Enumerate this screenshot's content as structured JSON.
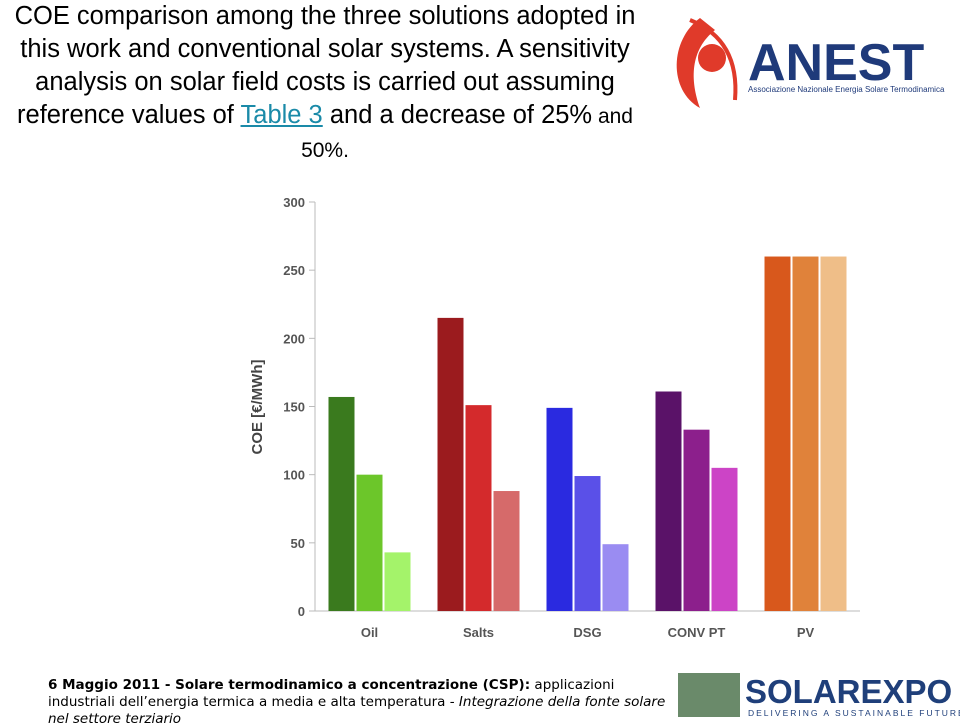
{
  "slide": {
    "title": [
      "COE comparison among the three solutions adopted in this work and conventional solar systems. A sensitivity analysis on solar field costs is carried out assuming reference values of ",
      "Table 3",
      " and a decrease of 25%",
      " and 50%."
    ],
    "footer": [
      "6 Maggio 2011 - Solare termodinamico a concentrazione (CSP):",
      " applicazioni industriali dell’energia termica a media e alta temperatura - ",
      "Integrazione della fonte solare nel settore terziario"
    ]
  },
  "logos": {
    "anest": "ANEST",
    "anest_sub": "Associazione Nazionale Energia Solare Termodinamica",
    "solarexpo": "SOLAREXPO",
    "solarexpo_sub": "DELIVERING A SUSTAINABLE FUTURE"
  },
  "chart_data": {
    "type": "bar",
    "y_label": "COE [€/MWh]",
    "categories": [
      "Oil",
      "Salts",
      "DSG",
      "CONV PT",
      "PV"
    ],
    "series": [
      {
        "values": [
          157,
          215,
          149,
          161,
          260
        ],
        "colors": [
          "#3a7a1e",
          "#9b1b1e",
          "#2a2ae0",
          "#5a1268",
          "#d8581c"
        ]
      },
      {
        "values": [
          100,
          151,
          99,
          133,
          260
        ],
        "colors": [
          "#6cc62a",
          "#d42a2c",
          "#5a50e8",
          "#8c1f8c",
          "#e0823a"
        ]
      },
      {
        "values": [
          43,
          88,
          49,
          105,
          260
        ],
        "colors": [
          "#a4f36a",
          "#d66a6a",
          "#9a8cf2",
          "#cc44c6",
          "#efbe88"
        ]
      }
    ],
    "ylim": [
      0,
      300
    ],
    "yticks": [
      0,
      50,
      100,
      150,
      200,
      250,
      300
    ],
    "grid": false
  }
}
